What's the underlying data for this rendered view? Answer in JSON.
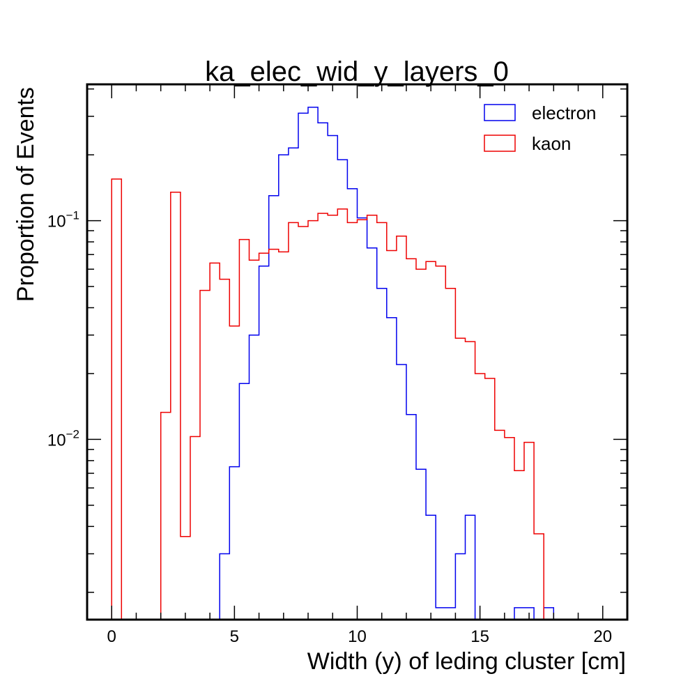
{
  "chart_data": {
    "type": "histogram",
    "title": "ka_elec_wid_y_layers_0",
    "xlabel": "Width (y) of leding cluster [cm]",
    "ylabel": "Proportion of Events",
    "xlim": [
      -1,
      21
    ],
    "ylim": [
      0.0015,
      0.42
    ],
    "yscale": "log",
    "grid": false,
    "legend_position": "top-right",
    "x_ticks": [
      {
        "value": 0,
        "label": "0"
      },
      {
        "value": 5,
        "label": "5"
      },
      {
        "value": 10,
        "label": "10"
      },
      {
        "value": 15,
        "label": "15"
      },
      {
        "value": 20,
        "label": "20"
      }
    ],
    "y_ticks": [
      {
        "value": 0.1,
        "base": "10",
        "exp": "−1"
      },
      {
        "value": 0.01,
        "base": "10",
        "exp": "−2"
      }
    ],
    "bin_width": 0.4,
    "series": [
      {
        "name": "electron",
        "color": "#0000ee",
        "x0": 4.4,
        "values": [
          0.003,
          0.0075,
          0.018,
          0.03,
          0.062,
          0.13,
          0.2,
          0.215,
          0.31,
          0.33,
          0.28,
          0.245,
          0.19,
          0.14,
          0.103,
          0.075,
          0.049,
          0.036,
          0.022,
          0.013,
          0.0073,
          0.0045,
          0.0017,
          0.0017,
          0.003,
          0.0045,
          0,
          0,
          0,
          0,
          0.0017,
          0.0017,
          0,
          0.0017
        ]
      },
      {
        "name": "kaon",
        "color": "#ee0000",
        "x0": 0,
        "values": [
          0.155,
          0,
          0,
          0,
          0,
          0.0133,
          0.135,
          0.0036,
          0.0103,
          0.048,
          0.064,
          0.054,
          0.033,
          0.082,
          0.066,
          0.071,
          0.074,
          0.072,
          0.098,
          0.094,
          0.1,
          0.108,
          0.106,
          0.113,
          0.098,
          0.101,
          0.106,
          0.098,
          0.073,
          0.085,
          0.067,
          0.06,
          0.065,
          0.062,
          0.049,
          0.029,
          0.028,
          0.02,
          0.019,
          0.011,
          0.0102,
          0.0072,
          0.0097,
          0.0037
        ]
      }
    ]
  }
}
